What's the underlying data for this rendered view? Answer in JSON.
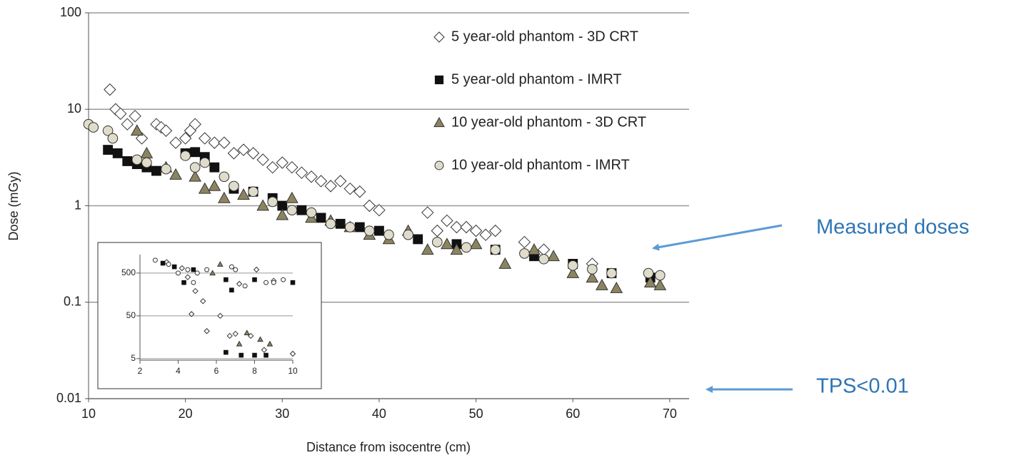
{
  "chart_data": [
    {
      "type": "scatter",
      "log_y": true,
      "grid": true,
      "xlabel": "Distance from isocentre (cm)",
      "ylabel": "Dose (mGy)",
      "xlim": [
        10,
        72
      ],
      "ylim": [
        0.01,
        100
      ],
      "xticks": [
        10,
        20,
        30,
        40,
        50,
        60,
        70
      ],
      "yticks": [
        0.01,
        0.1,
        1,
        10,
        100
      ],
      "legend": "upper right",
      "annotations": [
        "Measured doses",
        "TPS<0.01"
      ],
      "series": [
        {
          "name": "5 year-old phantom - 3D CRT",
          "marker": "diamond",
          "color": "#ffffff",
          "x": [
            12.2,
            12.8,
            13.3,
            14,
            14.8,
            15.5,
            17,
            17.5,
            18,
            19,
            20,
            20.5,
            21,
            22,
            23,
            24,
            25,
            26,
            27,
            28,
            29,
            30,
            31,
            32,
            33,
            34,
            35,
            36,
            37,
            38,
            39,
            40,
            45,
            46,
            47,
            48,
            49,
            50,
            51,
            52,
            55,
            57,
            62
          ],
          "values": [
            16,
            10,
            9,
            7,
            8.5,
            5,
            7,
            6.5,
            6,
            4.5,
            5,
            6,
            7,
            5,
            4.5,
            4.5,
            3.5,
            3.8,
            3.5,
            3,
            2.5,
            2.8,
            2.5,
            2.2,
            2,
            1.8,
            1.6,
            1.8,
            1.5,
            1.4,
            1,
            0.9,
            0.85,
            0.55,
            0.7,
            0.6,
            0.6,
            0.55,
            0.5,
            0.55,
            0.42,
            0.35,
            0.25
          ]
        },
        {
          "name": "5 year-old phantom - IMRT",
          "marker": "square",
          "color": "#111111",
          "x": [
            12,
            13,
            14,
            15,
            16,
            17,
            20,
            21,
            22,
            23,
            25,
            27,
            29,
            30,
            32,
            34,
            36,
            38,
            40,
            44,
            48,
            52,
            56,
            60,
            64,
            68
          ],
          "values": [
            3.8,
            3.5,
            2.9,
            2.7,
            2.5,
            2.3,
            3.5,
            3.6,
            3.2,
            2.5,
            1.5,
            1.4,
            1.2,
            1,
            0.9,
            0.75,
            0.65,
            0.6,
            0.55,
            0.45,
            0.4,
            0.35,
            0.3,
            0.25,
            0.2,
            0.18
          ]
        },
        {
          "name": "10 year-old phantom - 3D CRT",
          "marker": "triangle",
          "color": "#8c8460",
          "x": [
            15,
            16,
            18,
            19,
            21,
            22,
            23,
            24,
            26,
            28,
            30,
            31,
            33,
            35,
            37,
            39,
            41,
            43,
            45,
            47,
            48,
            50,
            53,
            56,
            58,
            60,
            62,
            63,
            64.5,
            68,
            69
          ],
          "values": [
            6,
            3.5,
            2.5,
            2.1,
            2,
            1.5,
            1.6,
            1.2,
            1.3,
            1,
            0.8,
            1.2,
            0.75,
            0.7,
            0.6,
            0.5,
            0.45,
            0.55,
            0.35,
            0.4,
            0.35,
            0.4,
            0.25,
            0.35,
            0.3,
            0.2,
            0.18,
            0.15,
            0.14,
            0.16,
            0.15
          ]
        },
        {
          "name": "10 year-old phantom - IMRT",
          "marker": "circle",
          "color": "#e0dccb",
          "x": [
            10,
            10.5,
            12,
            12.5,
            15,
            16,
            18,
            20,
            21,
            22,
            24,
            25,
            27,
            29,
            31,
            33,
            35,
            37,
            39,
            41,
            43,
            46,
            49,
            52,
            55,
            57,
            60,
            62,
            64,
            67.8,
            69
          ],
          "values": [
            7,
            6.5,
            6,
            5,
            3,
            2.8,
            2.4,
            3.3,
            2.5,
            2.8,
            2,
            1.6,
            1.4,
            1.1,
            0.9,
            0.85,
            0.65,
            0.6,
            0.55,
            0.5,
            0.5,
            0.42,
            0.37,
            0.35,
            0.32,
            0.28,
            0.24,
            0.22,
            0.2,
            0.2,
            0.19
          ]
        }
      ]
    },
    {
      "type": "scatter",
      "log_y": true,
      "grid": true,
      "xlim": [
        2,
        10
      ],
      "ylim": [
        4.6,
        1350
      ],
      "xticks": [
        2,
        4,
        6,
        8,
        10
      ],
      "yticks": [
        5,
        50,
        500
      ],
      "series": [
        {
          "marker": "diamond",
          "color": "#ffffff",
          "x": [
            3.4,
            4.2,
            4.5,
            4.7,
            4.9,
            5.3,
            5.5,
            6.2,
            6.7,
            7,
            7.2,
            7.8,
            8.1,
            8.5,
            9,
            10
          ],
          "values": [
            900,
            650,
            400,
            55,
            190,
            110,
            22,
            50,
            17,
            19,
            280,
            17,
            600,
            8,
            330,
            6.5
          ]
        },
        {
          "marker": "square",
          "color": "#111111",
          "x": [
            3.2,
            3.8,
            4.3,
            4.8,
            6.5,
            6.8,
            6.5,
            7.3,
            8,
            8,
            8.6,
            10
          ],
          "values": [
            850,
            700,
            300,
            600,
            350,
            200,
            7,
            6,
            6,
            350,
            6,
            300
          ]
        },
        {
          "marker": "triangle",
          "color": "#8c8460",
          "x": [
            5.8,
            6.2,
            7.6,
            7.2,
            8.3,
            8.8
          ],
          "values": [
            500,
            800,
            20,
            11,
            14,
            11
          ]
        },
        {
          "marker": "circle",
          "color": "#ffffff",
          "x": [
            2.8,
            3.5,
            4,
            4.5,
            5,
            5.5,
            6.8,
            7,
            7.5,
            9,
            9.5,
            4.8,
            8.6
          ],
          "values": [
            1000,
            800,
            500,
            600,
            500,
            600,
            700,
            600,
            250,
            300,
            350,
            300,
            300
          ]
        }
      ]
    }
  ]
}
